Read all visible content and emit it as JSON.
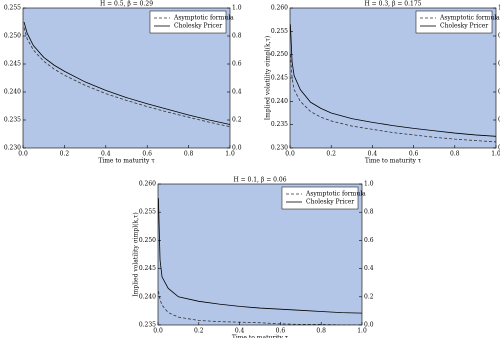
{
  "chart_data": [
    {
      "type": "line",
      "title": "H = 0.5, β = 0.29",
      "xlabel": "Time to maturity τ",
      "facecolor": "#b4c6e7",
      "legend": "upper right",
      "x": [
        0.005,
        0.02,
        0.05,
        0.1,
        0.15,
        0.2,
        0.3,
        0.4,
        0.5,
        0.6,
        0.7,
        0.8,
        0.9,
        1.0
      ],
      "series": [
        {
          "name": "Asymptotic formula",
          "color": "#333333",
          "linestyle": "dashed",
          "values": [
            0.2515,
            0.2495,
            0.2475,
            0.2455,
            0.2441,
            0.243,
            0.2412,
            0.2397,
            0.2385,
            0.2374,
            0.2364,
            0.2355,
            0.2346,
            0.2338
          ]
        },
        {
          "name": "Cholesky Pricer",
          "color": "#000000",
          "linestyle": "solid",
          "values": [
            0.2525,
            0.2505,
            0.2483,
            0.2462,
            0.2448,
            0.2437,
            0.2418,
            0.2403,
            0.239,
            0.2379,
            0.2369,
            0.2359,
            0.235,
            0.2342
          ]
        }
      ],
      "xlim": [
        0,
        1
      ],
      "xticks": [
        {
          "value": 0,
          "label": "0.0"
        },
        0.2,
        0.4,
        0.6,
        0.8,
        {
          "value": 1,
          "label": "1.0"
        }
      ],
      "ylim": [
        0.23,
        0.255
      ],
      "yticks": [
        {
          "value": 0.23,
          "label": "0.230"
        },
        0.235,
        {
          "value": 0.24,
          "label": "0.240"
        },
        0.245,
        {
          "value": 0.25,
          "label": "0.250"
        },
        0.255
      ],
      "y2lim": [
        0,
        1
      ],
      "y2ticks": [
        {
          "value": 0,
          "label": "0.0"
        },
        0.2,
        0.4,
        0.6,
        0.8,
        {
          "value": 1,
          "label": "1.0"
        }
      ]
    },
    {
      "type": "line",
      "title": "H = 0.3, β = 0.175",
      "xlabel": "Time to maturity τ",
      "ylabel": "Implied volatility σimpl(k,τ)",
      "facecolor": "#b4c6e7",
      "legend": "upper right",
      "x": [
        0.002,
        0.01,
        0.02,
        0.05,
        0.1,
        0.15,
        0.2,
        0.3,
        0.4,
        0.5,
        0.6,
        0.7,
        0.8,
        0.9,
        1.0
      ],
      "series": [
        {
          "name": "Asymptotic formula",
          "color": "#333333",
          "linestyle": "dashed",
          "values": [
            0.25,
            0.245,
            0.2425,
            0.24,
            0.2378,
            0.2366,
            0.2358,
            0.2347,
            0.234,
            0.2333,
            0.2328,
            0.2323,
            0.2319,
            0.2316,
            0.2313
          ]
        },
        {
          "name": "Cholesky Pricer",
          "color": "#000000",
          "linestyle": "solid",
          "values": [
            0.2565,
            0.2485,
            0.2455,
            0.2425,
            0.2398,
            0.2385,
            0.2375,
            0.2363,
            0.2355,
            0.2348,
            0.2342,
            0.2337,
            0.2332,
            0.2328,
            0.2325
          ]
        }
      ],
      "xlim": [
        0,
        1
      ],
      "xticks": [
        {
          "value": 0,
          "label": "0.0"
        },
        0.2,
        0.4,
        0.6,
        0.8,
        {
          "value": 1,
          "label": "1.0"
        }
      ],
      "ylim": [
        0.23,
        0.26
      ],
      "yticks": [
        {
          "value": 0.23,
          "label": "0.230"
        },
        0.235,
        {
          "value": 0.24,
          "label": "0.240"
        },
        0.245,
        {
          "value": 0.25,
          "label": "0.250"
        },
        0.255,
        {
          "value": 0.26,
          "label": "0.260"
        }
      ],
      "y2lim": [
        0,
        1
      ],
      "y2ticks": [
        {
          "value": 0,
          "label": "0.0"
        },
        0.2,
        0.4,
        0.6,
        0.8,
        {
          "value": 1,
          "label": "1.0"
        }
      ]
    },
    {
      "type": "line",
      "title": "H = 0.1, β = 0.06",
      "xlabel": "Time to maturity τ",
      "ylabel": "Implied volatility σimpl(k,τ)",
      "facecolor": "#b4c6e7",
      "legend": "upper right",
      "x": [
        0.002,
        0.01,
        0.02,
        0.05,
        0.1,
        0.2,
        0.3,
        0.4,
        0.5,
        0.6,
        0.7,
        0.8,
        0.9,
        1.0
      ],
      "series": [
        {
          "name": "Asymptotic formula",
          "color": "#333333",
          "linestyle": "dashed",
          "values": [
            0.241,
            0.2395,
            0.2385,
            0.2372,
            0.2364,
            0.2358,
            0.2356,
            0.2355,
            0.2354,
            0.2352,
            0.2351,
            0.2351,
            0.235,
            0.235
          ]
        },
        {
          "name": "Cholesky Pricer",
          "color": "#000000",
          "linestyle": "solid",
          "values": [
            0.2575,
            0.2465,
            0.2435,
            0.2415,
            0.24,
            0.2392,
            0.2387,
            0.2383,
            0.238,
            0.2378,
            0.2376,
            0.2374,
            0.2372,
            0.2371
          ]
        }
      ],
      "xlim": [
        0,
        1
      ],
      "xticks": [
        {
          "value": 0,
          "label": "0.0"
        },
        0.2,
        0.4,
        0.6,
        0.8,
        {
          "value": 1,
          "label": "1.0"
        }
      ],
      "ylim": [
        0.235,
        0.26
      ],
      "yticks": [
        0.235,
        {
          "value": 0.24,
          "label": "0.240"
        },
        0.245,
        {
          "value": 0.25,
          "label": "0.250"
        },
        0.255,
        {
          "value": 0.26,
          "label": "0.260"
        }
      ],
      "y2lim": [
        0,
        1
      ],
      "y2ticks": [
        {
          "value": 0,
          "label": "0.0"
        },
        0.2,
        0.4,
        0.6,
        0.8,
        {
          "value": 1,
          "label": "1.0"
        }
      ]
    }
  ]
}
